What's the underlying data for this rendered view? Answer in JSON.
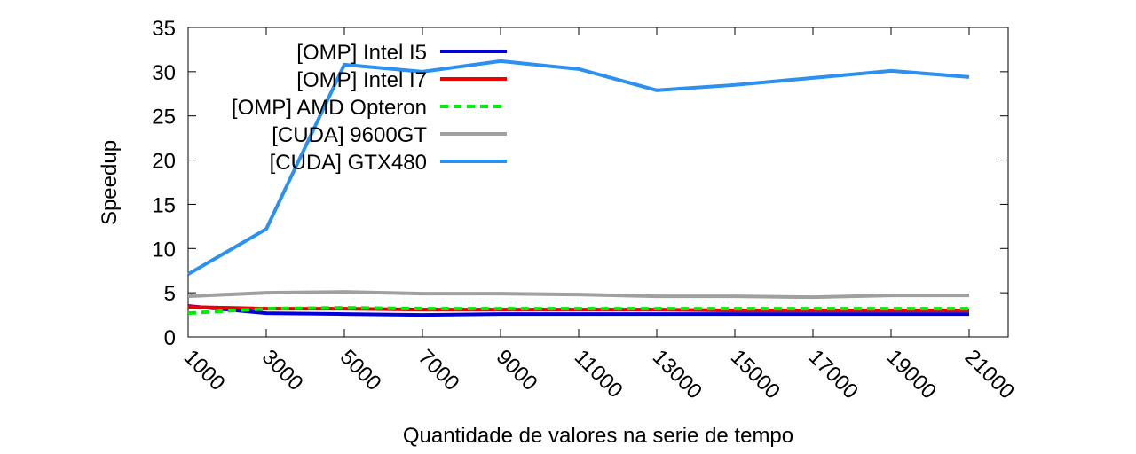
{
  "chart_data": {
    "type": "line",
    "title": "",
    "xlabel": "Quantidade de valores na serie de tempo",
    "ylabel": "Speedup",
    "xlim": [
      1000,
      22000
    ],
    "ylim": [
      0,
      35
    ],
    "xticks": [
      1000,
      3000,
      5000,
      7000,
      9000,
      11000,
      13000,
      15000,
      17000,
      19000,
      21000
    ],
    "xtick_labels": [
      "1000",
      "3000",
      "5000",
      "7000",
      "9000",
      "11000",
      "13000",
      "15000",
      "17000",
      "19000",
      "21000"
    ],
    "yticks": [
      0,
      5,
      10,
      15,
      20,
      25,
      30,
      35
    ],
    "ytick_labels": [
      "0",
      "5",
      "10",
      "15",
      "20",
      "25",
      "30",
      "35"
    ],
    "grid": false,
    "legend_position": "top-left",
    "x": [
      1000,
      3000,
      5000,
      7000,
      9000,
      11000,
      13000,
      15000,
      17000,
      19000,
      21000
    ],
    "series": [
      {
        "name": "[OMP] Intel I5",
        "color": "#0000e0",
        "dash": "solid",
        "values": [
          3.5,
          2.7,
          2.6,
          2.5,
          2.6,
          2.6,
          2.6,
          2.6,
          2.6,
          2.6,
          2.6
        ]
      },
      {
        "name": "[OMP] Intel I7",
        "color": "#ee0000",
        "dash": "solid",
        "values": [
          3.4,
          3.2,
          3.2,
          3.1,
          3.1,
          3.1,
          3.1,
          3.0,
          3.0,
          3.0,
          3.0
        ]
      },
      {
        "name": "[OMP] AMD Opteron",
        "color": "#00ee00",
        "dash": "dashed",
        "values": [
          2.7,
          3.2,
          3.3,
          3.2,
          3.2,
          3.2,
          3.2,
          3.2,
          3.2,
          3.2,
          3.2
        ]
      },
      {
        "name": "[CUDA] 9600GT",
        "color": "#a0a0a0",
        "dash": "solid",
        "values": [
          4.6,
          5.0,
          5.1,
          4.9,
          4.9,
          4.8,
          4.6,
          4.6,
          4.5,
          4.7,
          4.7
        ]
      },
      {
        "name": "[CUDA] GTX480",
        "color": "#2b90ef",
        "dash": "solid",
        "values": [
          7.1,
          12.2,
          30.8,
          30.0,
          31.2,
          30.3,
          27.9,
          28.5,
          29.3,
          30.1,
          29.4
        ]
      }
    ]
  }
}
